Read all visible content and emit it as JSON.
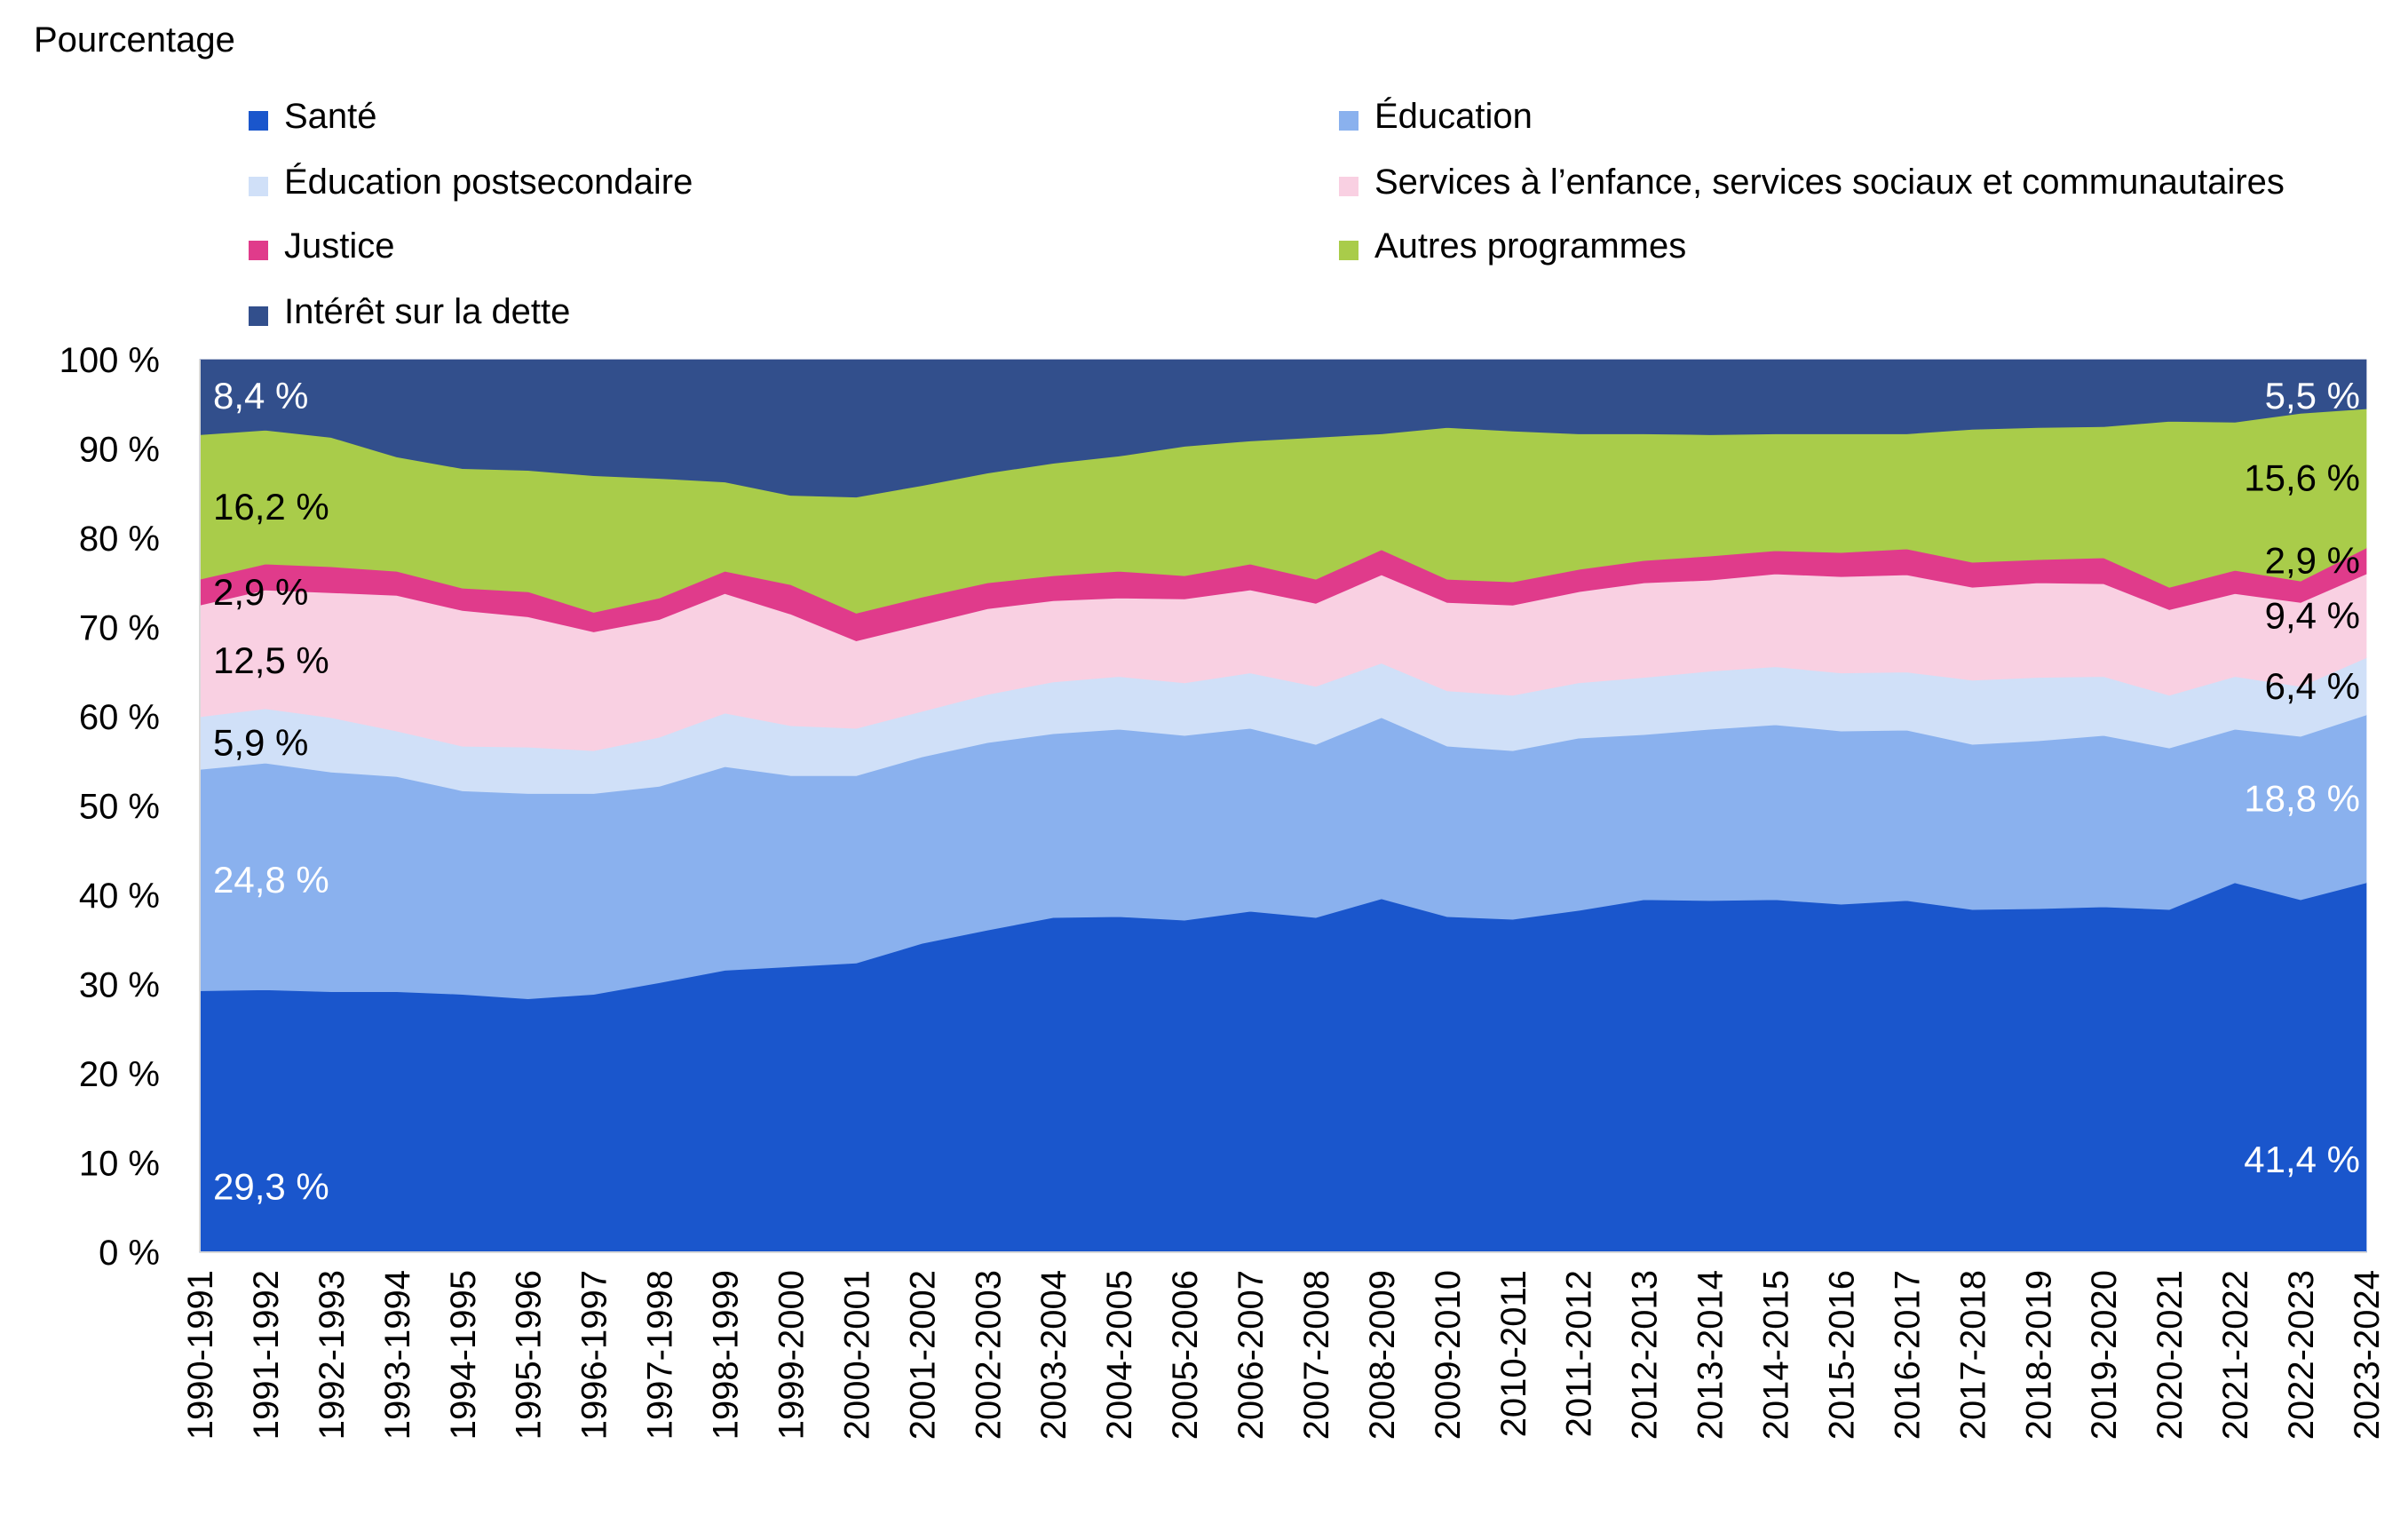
{
  "chart_data": {
    "type": "area",
    "stacked": true,
    "ylabel": "Pourcentage",
    "ylim": [
      0,
      100
    ],
    "yticks": [
      0,
      10,
      20,
      30,
      40,
      50,
      60,
      70,
      80,
      90,
      100
    ],
    "ytick_suffix": " %",
    "grid": false,
    "legend_position": "top",
    "categories": [
      "1990-1991",
      "1991-1992",
      "1992-1993",
      "1993-1994",
      "1994-1995",
      "1995-1996",
      "1996-1997",
      "1997-1998",
      "1998-1999",
      "1999-2000",
      "2000-2001",
      "2001-2002",
      "2002-2003",
      "2003-2004",
      "2004-2005",
      "2005-2006",
      "2006-2007",
      "2007-2008",
      "2008-2009",
      "2009-2010",
      "2010-2011",
      "2011-2012",
      "2012-2013",
      "2013-2014",
      "2014-2015",
      "2015-2016",
      "2016-2017",
      "2017-2018",
      "2018-2019",
      "2019-2020",
      "2020-2021",
      "2021-2022",
      "2022-2023",
      "2023-2024"
    ],
    "series": [
      {
        "name": "Santé",
        "color": "#1a56cc",
        "values": [
          29.3,
          29.4,
          29.2,
          29.2,
          28.9,
          28.4,
          28.9,
          30.2,
          31.6,
          32.0,
          32.4,
          34.6,
          36.1,
          37.5,
          37.6,
          37.2,
          38.2,
          37.5,
          39.6,
          37.6,
          37.3,
          38.3,
          39.5,
          39.4,
          39.5,
          39.0,
          39.4,
          38.4,
          38.5,
          38.7,
          38.4,
          41.4,
          39.5,
          41.4
        ]
      },
      {
        "name": "Éducation",
        "color": "#8ab1ee",
        "values": [
          24.8,
          25.4,
          24.6,
          24.1,
          22.8,
          23.0,
          22.5,
          22.0,
          22.8,
          21.4,
          21.0,
          20.9,
          21.0,
          20.6,
          21.0,
          20.7,
          20.5,
          19.4,
          20.3,
          19.1,
          18.9,
          19.3,
          18.5,
          19.2,
          19.6,
          19.4,
          19.1,
          18.5,
          18.8,
          19.2,
          18.1,
          17.2,
          18.3,
          18.8
        ]
      },
      {
        "name": "Éducation postsecondaire",
        "color": "#d0e0f8",
        "values": [
          5.9,
          6.1,
          6.1,
          5.1,
          5.0,
          5.2,
          4.8,
          5.5,
          6.0,
          5.6,
          5.3,
          5.1,
          5.4,
          5.8,
          5.9,
          5.9,
          6.2,
          6.5,
          6.1,
          6.2,
          6.2,
          6.2,
          6.4,
          6.5,
          6.5,
          6.5,
          6.5,
          7.2,
          7.1,
          6.6,
          5.9,
          5.9,
          5.6,
          6.4
        ]
      },
      {
        "name": "Services à l’enfance, services sociaux et communautaires",
        "color": "#f9d0e2",
        "values": [
          12.5,
          13.3,
          14.0,
          15.2,
          15.2,
          14.6,
          13.3,
          13.2,
          13.4,
          12.5,
          9.8,
          9.7,
          9.6,
          9.1,
          8.8,
          9.4,
          9.3,
          9.3,
          9.9,
          9.9,
          10.1,
          10.2,
          10.6,
          10.2,
          10.4,
          10.8,
          10.9,
          10.4,
          10.6,
          10.4,
          9.6,
          9.3,
          9.4,
          9.4
        ]
      },
      {
        "name": "Justice",
        "color": "#e03b8b",
        "values": [
          2.9,
          2.9,
          2.9,
          2.7,
          2.5,
          2.8,
          2.2,
          2.4,
          2.5,
          3.3,
          3.1,
          3.1,
          2.9,
          2.8,
          3.0,
          2.6,
          2.9,
          2.7,
          2.8,
          2.6,
          2.6,
          2.5,
          2.5,
          2.7,
          2.6,
          2.7,
          2.9,
          2.8,
          2.6,
          2.9,
          2.5,
          2.6,
          2.4,
          2.9
        ]
      },
      {
        "name": "Autres programmes",
        "color": "#a9cc4a",
        "values": [
          16.2,
          15.0,
          14.5,
          12.8,
          13.4,
          13.6,
          15.3,
          13.4,
          10.0,
          10.0,
          13.0,
          12.5,
          12.3,
          12.6,
          12.9,
          14.5,
          13.8,
          15.9,
          13.0,
          17.0,
          16.9,
          15.2,
          14.2,
          13.6,
          13.1,
          13.3,
          12.9,
          14.9,
          14.8,
          14.7,
          18.6,
          16.6,
          18.8,
          15.6
        ]
      },
      {
        "name": "Intérêt sur la dette",
        "color": "#324f8c",
        "values": [
          8.4,
          7.9,
          8.7,
          10.9,
          12.2,
          12.4,
          13.0,
          13.3,
          13.7,
          15.2,
          15.4,
          14.1,
          12.7,
          11.6,
          10.8,
          9.7,
          9.1,
          8.7,
          8.3,
          7.6,
          8.0,
          8.3,
          8.3,
          8.4,
          8.3,
          8.3,
          8.3,
          7.8,
          7.6,
          7.5,
          6.9,
          7.0,
          6.0,
          5.5
        ]
      }
    ],
    "annotations": [
      {
        "text": "8,4 %",
        "series": 6,
        "side": "left",
        "color": "#ffffff"
      },
      {
        "text": "16,2 %",
        "series": 5,
        "side": "left",
        "color": "#000000"
      },
      {
        "text": "2,9 %",
        "series": 4,
        "side": "left",
        "color": "#000000"
      },
      {
        "text": "12,5 %",
        "series": 3,
        "side": "left",
        "color": "#000000"
      },
      {
        "text": "5,9 %",
        "series": 2,
        "side": "left",
        "color": "#000000"
      },
      {
        "text": "24,8 %",
        "series": 1,
        "side": "left",
        "color": "#ffffff"
      },
      {
        "text": "29,3 %",
        "series": 0,
        "side": "left",
        "color": "#ffffff"
      },
      {
        "text": "5,5 %",
        "series": 6,
        "side": "right",
        "color": "#ffffff"
      },
      {
        "text": "15,6 %",
        "series": 5,
        "side": "right",
        "color": "#000000"
      },
      {
        "text": "2,9 %",
        "series": 4,
        "side": "right",
        "color": "#000000"
      },
      {
        "text": "9,4 %",
        "series": 3,
        "side": "right",
        "color": "#000000"
      },
      {
        "text": "6,4 %",
        "series": 2,
        "side": "right",
        "color": "#000000"
      },
      {
        "text": "18,8 %",
        "series": 1,
        "side": "right",
        "color": "#ffffff"
      },
      {
        "text": "41,4 %",
        "series": 0,
        "side": "right",
        "color": "#ffffff"
      }
    ]
  }
}
